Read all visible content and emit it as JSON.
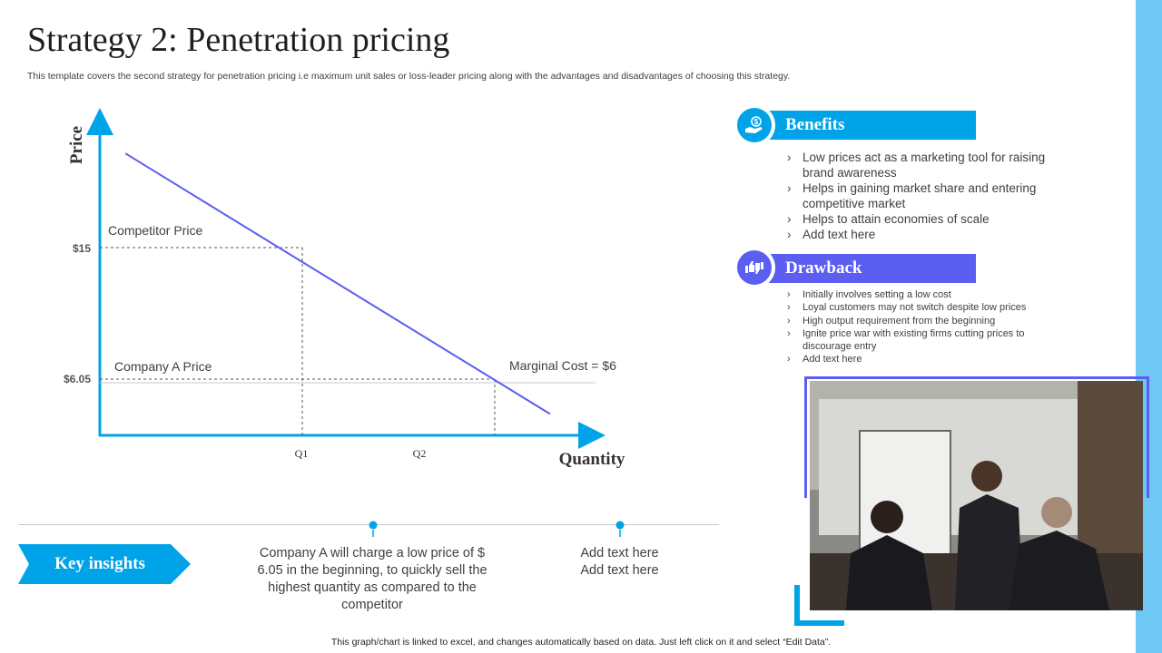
{
  "header": {
    "title": "Strategy 2: Penetration pricing",
    "subtitle": "This template covers the second strategy for penetration pricing i.e maximum unit sales or loss-leader pricing along with the advantages and disadvantages of choosing this strategy."
  },
  "chart_data": {
    "type": "line",
    "xlabel": "Quantity",
    "ylabel": "Price",
    "x_ticks": [
      "Q1",
      "Q2"
    ],
    "y_ticks": [
      "$15",
      "$6.05"
    ],
    "series": [
      {
        "points": [
          [
            0.3,
            20
          ],
          [
            4.5,
            -0.1
          ]
        ]
      }
    ],
    "reference_lines": {
      "competitor_price": {
        "y": 15,
        "x": 2.5
      },
      "company_price": {
        "y": 6.05,
        "x": 4.0
      }
    },
    "annotations": [
      "Competitor Price",
      "Company A Price",
      "Marginal Cost = $6"
    ],
    "colors": {
      "line": "#5b5ef0",
      "axis": "#00a3e8"
    }
  },
  "benefits": {
    "title": "Benefits",
    "items": [
      "Low prices act as a marketing tool for raising brand awareness",
      "Helps in gaining market share and entering competitive market",
      "Helps to attain economies of scale",
      "Add text here"
    ]
  },
  "drawback": {
    "title": "Drawback",
    "items": [
      "Initially involves setting a low cost",
      "Loyal customers may not switch despite low prices",
      "High output requirement from the beginning",
      "Ignite price war with existing firms cutting prices to discourage entry",
      "Add text here"
    ]
  },
  "insights": {
    "label": "Key insights",
    "text": "Company A will charge a low price of $ 6.05 in the beginning, to quickly sell the highest quantity as compared to the competitor",
    "add_text_1": "Add text here",
    "add_text_2": "Add text here"
  },
  "footer": {
    "note": "This graph/chart is linked to excel,  and changes automatically based on data. Just left click on it and select “Edit Data”."
  },
  "icons": {
    "benefits": "money-hand-icon",
    "drawback": "thumbs-up-down-icon"
  },
  "colors": {
    "blue": "#00a3e8",
    "purple": "#5b5ef0",
    "stripe": "#6fc8f4"
  }
}
